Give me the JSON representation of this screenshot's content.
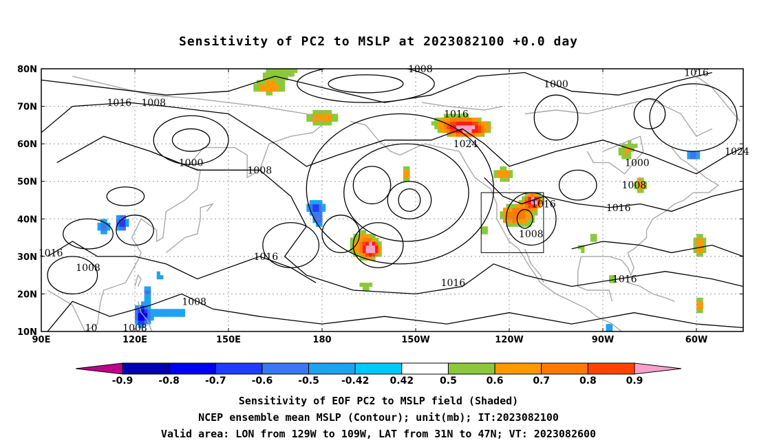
{
  "chart_data": {
    "type": "heatmap",
    "title": "Sensitivity of PC2 to MSLP at 2023082100 +0.0 day",
    "x_ticks": [
      "90E",
      "120E",
      "150E",
      "180",
      "150W",
      "120W",
      "90W",
      "60W"
    ],
    "y_ticks": [
      "80N",
      "70N",
      "60N",
      "50N",
      "40N",
      "30N",
      "20N",
      "10N"
    ],
    "xlim_deg_east": [
      90,
      315
    ],
    "ylim_deg_north": [
      10,
      80
    ],
    "grid": "dotted",
    "colorbar": {
      "labels": [
        "-0.9",
        "-0.8",
        "-0.7",
        "-0.6",
        "-0.5",
        "-0.42",
        "0.42",
        "0.5",
        "0.6",
        "0.7",
        "0.8",
        "0.9"
      ],
      "colors": [
        "#c0008a",
        "#0000b0",
        "#0000ee",
        "#1f3cff",
        "#3a78f0",
        "#1ea3f0",
        "#00c8ff",
        "#ffffff",
        "#8cc83c",
        "#ff9900",
        "#ff7a00",
        "#ff4400",
        "#ff1a1a",
        "#f7a1c8"
      ]
    },
    "contour_labels": [
      {
        "text": "1008",
        "lon": 211.5,
        "lat": 80
      },
      {
        "text": "1000",
        "lon": 255,
        "lat": 76
      },
      {
        "text": "1016",
        "lon": 300,
        "lat": 79
      },
      {
        "text": "1016",
        "lon": 115,
        "lat": 71
      },
      {
        "text": "1008",
        "lon": 126,
        "lat": 71
      },
      {
        "text": "1016",
        "lon": 223,
        "lat": 68
      },
      {
        "text": "1024",
        "lon": 226,
        "lat": 60
      },
      {
        "text": "1000",
        "lon": 138,
        "lat": 55
      },
      {
        "text": "1008",
        "lon": 160,
        "lat": 53
      },
      {
        "text": "1000",
        "lon": 281,
        "lat": 55
      },
      {
        "text": "1024",
        "lon": 313,
        "lat": 58
      },
      {
        "text": "1008",
        "lon": 280,
        "lat": 49
      },
      {
        "text": "1016",
        "lon": 251,
        "lat": 44
      },
      {
        "text": "1016",
        "lon": 275,
        "lat": 43
      },
      {
        "text": "1008",
        "lon": 247,
        "lat": 36
      },
      {
        "text": "1016",
        "lon": 93,
        "lat": 31
      },
      {
        "text": "1016",
        "lon": 162,
        "lat": 30
      },
      {
        "text": "1008",
        "lon": 105,
        "lat": 27
      },
      {
        "text": "1016",
        "lon": 222,
        "lat": 23
      },
      {
        "text": "1016",
        "lon": 277,
        "lat": 24
      },
      {
        "text": "1008",
        "lon": 139,
        "lat": 18
      },
      {
        "text": "10",
        "lon": 106,
        "lat": 11
      },
      {
        "text": "1008",
        "lon": 120,
        "lat": 11
      }
    ],
    "valid_area": {
      "lon": [
        231,
        251
      ],
      "lat": [
        31,
        47
      ]
    },
    "positive_regions": [
      {
        "lon": 168,
        "lat": 79.5,
        "sx": 12,
        "sy": 2.5,
        "v": 0.45
      },
      {
        "lon": 163,
        "lat": 75,
        "sx": 9,
        "sy": 3,
        "v": 0.55
      },
      {
        "lon": 180,
        "lat": 67,
        "sx": 8,
        "sy": 3,
        "v": 0.6
      },
      {
        "lon": 221,
        "lat": 66,
        "sx": 13,
        "sy": 4,
        "v": 0.45
      },
      {
        "lon": 227,
        "lat": 64,
        "sx": 8,
        "sy": 2.5,
        "v": 0.7
      },
      {
        "lon": 193,
        "lat": 33,
        "sx": 7,
        "sy": 6,
        "v": 0.6
      },
      {
        "lon": 196,
        "lat": 32,
        "sx": 2.5,
        "sy": 2,
        "v": 0.72
      },
      {
        "lon": 194,
        "lat": 22,
        "sx": 7,
        "sy": 2,
        "v": 0.45
      },
      {
        "lon": 238,
        "lat": 52,
        "sx": 6,
        "sy": 3,
        "v": 0.55
      },
      {
        "lon": 245,
        "lat": 41,
        "sx": 6,
        "sy": 6,
        "v": 0.55
      },
      {
        "lon": 248,
        "lat": 45,
        "sx": 3,
        "sy": 2,
        "v": 0.72
      },
      {
        "lon": 239,
        "lat": 41,
        "sx": 4,
        "sy": 3,
        "v": 0.45
      },
      {
        "lon": 232,
        "lat": 37,
        "sx": 2,
        "sy": 2,
        "v": 0.55
      },
      {
        "lon": 279,
        "lat": 58,
        "sx": 7,
        "sy": 5,
        "v": 0.55
      },
      {
        "lon": 282,
        "lat": 49,
        "sx": 3,
        "sy": 3,
        "v": 0.6
      },
      {
        "lon": 301,
        "lat": 33,
        "sx": 3,
        "sy": 6,
        "v": 0.6
      },
      {
        "lon": 301,
        "lat": 17,
        "sx": 2.5,
        "sy": 4,
        "v": 0.55
      },
      {
        "lon": 267,
        "lat": 35,
        "sx": 3,
        "sy": 3,
        "v": 0.45
      },
      {
        "lon": 290,
        "lat": 31,
        "sx": 2,
        "sy": 2,
        "v": 0.45
      },
      {
        "lon": 263,
        "lat": 32,
        "sx": 2,
        "sy": 2,
        "v": 0.45
      },
      {
        "lon": 285,
        "lat": 40,
        "sx": 3,
        "sy": 2,
        "v": 0.45
      },
      {
        "lon": 273,
        "lat": 24,
        "sx": 2,
        "sy": 2,
        "v": 0.5
      },
      {
        "lon": 166,
        "lat": 49,
        "sx": 2.5,
        "sy": 2,
        "v": 0.45
      },
      {
        "lon": 181,
        "lat": 60,
        "sx": 2.5,
        "sy": 2,
        "v": 0.45
      },
      {
        "lon": 217,
        "lat": 58,
        "sx": 2.5,
        "sy": 2,
        "v": 0.45
      },
      {
        "lon": 207,
        "lat": 52,
        "sx": 2.5,
        "sy": 3,
        "v": 0.6
      }
    ],
    "negative_regions": [
      {
        "lon": 178,
        "lat": 43,
        "sx": 4,
        "sy": 3,
        "v": -0.65
      },
      {
        "lon": 179,
        "lat": 39,
        "sx": 2.5,
        "sy": 2,
        "v": -0.48
      },
      {
        "lon": 110,
        "lat": 38,
        "sx": 3,
        "sy": 4,
        "v": -0.55
      },
      {
        "lon": 116,
        "lat": 39,
        "sx": 2.5,
        "sy": 3,
        "v": -0.72
      },
      {
        "lon": 132,
        "lat": 15,
        "sx": 10,
        "sy": 3.5,
        "v": -0.5
      },
      {
        "lon": 122,
        "lat": 14,
        "sx": 3,
        "sy": 4,
        "v": -0.6
      },
      {
        "lon": 124,
        "lat": 21,
        "sx": 2.5,
        "sy": 3,
        "v": -0.5
      },
      {
        "lon": 128,
        "lat": 25,
        "sx": 2.5,
        "sy": 2,
        "v": -0.46
      },
      {
        "lon": 283,
        "lat": 56,
        "sx": 3,
        "sy": 2.5,
        "v": -0.7
      },
      {
        "lon": 299,
        "lat": 57,
        "sx": 3,
        "sy": 2,
        "v": -0.65
      },
      {
        "lon": 312,
        "lat": 69,
        "sx": 2,
        "sy": 1.5,
        "v": -0.46
      },
      {
        "lon": 272,
        "lat": 11,
        "sx": 1.5,
        "sy": 2,
        "v": -0.55
      }
    ]
  },
  "caption": {
    "line1": "Sensitivity of EOF PC2 to MSLP field (Shaded)",
    "line2": "NCEP ensemble mean MSLP (Contour); unit(mb); IT:2023082100",
    "line3": "Valid area: LON from 129W to 109W, LAT from 31N to 47N; VT: 2023082600"
  }
}
